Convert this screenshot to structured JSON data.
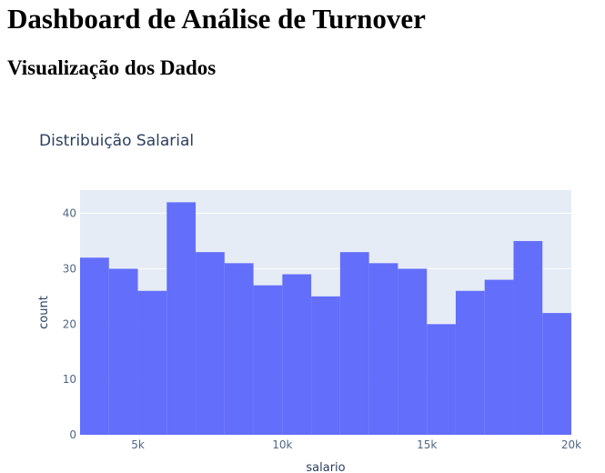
{
  "page": {
    "title": "Dashboard de Análise de Turnover",
    "section_title": "Visualização dos Dados"
  },
  "colors": {
    "bar": "#636efa",
    "plot_bg": "#e5ecf6",
    "grid": "#ffffff",
    "tick_text": "#506784",
    "axis_title": "#2a3f5f",
    "chart_title": "#2a3f5f"
  },
  "chart_data": {
    "type": "bar",
    "title": "Distribuição Salarial",
    "xlabel": "salario",
    "ylabel": "count",
    "histogram": true,
    "bin_size": 1000,
    "x_bin_starts": [
      3000,
      4000,
      5000,
      6000,
      7000,
      8000,
      9000,
      10000,
      11000,
      12000,
      13000,
      14000,
      15000,
      16000,
      17000,
      18000,
      19000
    ],
    "values": [
      32,
      30,
      26,
      42,
      33,
      31,
      27,
      29,
      25,
      33,
      31,
      30,
      20,
      26,
      28,
      35,
      22
    ],
    "xlim": [
      3000,
      20000
    ],
    "ylim": [
      0,
      44.2
    ],
    "x_ticks": [
      {
        "value": 5000,
        "label": "5k"
      },
      {
        "value": 10000,
        "label": "10k"
      },
      {
        "value": 15000,
        "label": "15k"
      },
      {
        "value": 20000,
        "label": "20k"
      }
    ],
    "y_ticks": [
      {
        "value": 0,
        "label": "0"
      },
      {
        "value": 10,
        "label": "10"
      },
      {
        "value": 20,
        "label": "20"
      },
      {
        "value": 30,
        "label": "30"
      },
      {
        "value": 40,
        "label": "40"
      }
    ],
    "grid": true,
    "legend": "none"
  }
}
